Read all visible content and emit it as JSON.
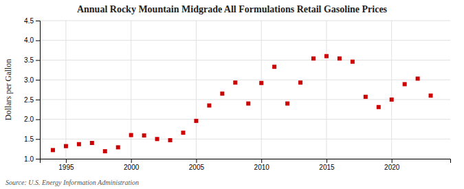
{
  "chart_data": {
    "type": "scatter",
    "title": "Annual Rocky Mountain Midgrade All Formulations Retail Gasoline Prices",
    "ylabel": "Dollars per Gallon",
    "source": "Source: U.S. Energy Information Administration",
    "x": [
      1994,
      1995,
      1996,
      1997,
      1998,
      1999,
      2000,
      2001,
      2002,
      2003,
      2004,
      2005,
      2006,
      2007,
      2008,
      2009,
      2010,
      2011,
      2012,
      2013,
      2014,
      2015,
      2016,
      2017,
      2018,
      2019,
      2020,
      2021,
      2022,
      2023
    ],
    "values": [
      1.22,
      1.32,
      1.37,
      1.4,
      1.19,
      1.29,
      1.6,
      1.59,
      1.5,
      1.47,
      1.66,
      1.96,
      2.35,
      2.65,
      2.93,
      2.4,
      2.92,
      3.33,
      2.4,
      2.93,
      3.54,
      3.6,
      3.54,
      3.46,
      2.57,
      2.31,
      2.5,
      2.89,
      3.03,
      2.6
    ],
    "color": "#cc0000",
    "marker": "square",
    "xlim": [
      1993.0,
      2024.5
    ],
    "ylim": [
      1.0,
      4.5
    ],
    "xticks": [
      1995,
      2000,
      2005,
      2010,
      2015,
      2020
    ],
    "yticks": [
      {
        "value": 1.0,
        "label": "1.0"
      },
      1.5,
      {
        "value": 2.0,
        "label": "2.0"
      },
      2.5,
      {
        "value": 3.0,
        "label": "3.0"
      },
      3.5,
      {
        "value": 4.0,
        "label": "4.0"
      },
      4.5
    ],
    "grid": true
  }
}
